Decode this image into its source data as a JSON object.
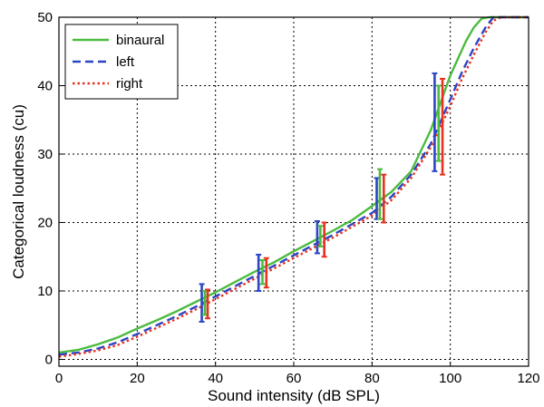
{
  "chart_data": {
    "type": "line",
    "title": "",
    "xlabel": "Sound intensity (dB SPL)",
    "ylabel": "Categorical loudness (cu)",
    "xlim": [
      0,
      120
    ],
    "ylim": [
      -1,
      50
    ],
    "x_ticks": [
      "0",
      "20",
      "40",
      "60",
      "80",
      "100",
      "120"
    ],
    "y_ticks": [
      "0",
      "10",
      "20",
      "30",
      "40",
      "50"
    ],
    "grid": true,
    "grid_style": "dotted",
    "legend_position": "top-left",
    "series": [
      {
        "name": "binaural",
        "color": "#4cbb3f",
        "style": "solid",
        "x": [
          0,
          5,
          10,
          15,
          20,
          25,
          30,
          35,
          40,
          45,
          50,
          55,
          60,
          65,
          70,
          75,
          80,
          85,
          90,
          95,
          100,
          102,
          104,
          106,
          108,
          110,
          112,
          115,
          120
        ],
        "y": [
          1.0,
          1.4,
          2.2,
          3.2,
          4.5,
          5.7,
          7.0,
          8.4,
          9.8,
          11.3,
          12.8,
          14.2,
          15.8,
          17.3,
          18.8,
          20.4,
          22.4,
          24.5,
          27.5,
          33.5,
          41.5,
          44.0,
          46.5,
          48.5,
          49.8,
          50,
          50,
          50,
          50
        ]
      },
      {
        "name": "left",
        "color": "#2b45c4",
        "style": "dashed",
        "x": [
          0,
          5,
          10,
          15,
          20,
          25,
          30,
          35,
          40,
          45,
          50,
          55,
          60,
          65,
          70,
          75,
          80,
          85,
          90,
          95,
          100,
          103,
          106,
          109,
          111,
          113,
          115,
          120
        ],
        "y": [
          0.7,
          1.0,
          1.6,
          2.5,
          3.7,
          5.0,
          6.3,
          7.7,
          9.2,
          10.7,
          12.2,
          13.7,
          15.2,
          16.7,
          18.2,
          19.8,
          21.4,
          23.8,
          27.0,
          31.5,
          38.0,
          42.0,
          45.5,
          48.5,
          50,
          50,
          50,
          50
        ]
      },
      {
        "name": "right",
        "color": "#e8311f",
        "style": "dotted",
        "x": [
          0,
          5,
          10,
          15,
          20,
          25,
          30,
          35,
          40,
          45,
          50,
          55,
          60,
          65,
          70,
          75,
          80,
          85,
          90,
          95,
          100,
          103,
          106,
          109,
          111,
          113,
          115,
          120
        ],
        "y": [
          0.4,
          0.8,
          1.3,
          2.1,
          3.3,
          4.6,
          5.9,
          7.3,
          8.8,
          10.3,
          11.8,
          13.3,
          14.8,
          16.3,
          17.8,
          19.4,
          21.0,
          23.3,
          26.5,
          31.0,
          37.0,
          41.0,
          44.5,
          47.8,
          49.5,
          50,
          50,
          50
        ]
      }
    ],
    "error_bars": [
      {
        "series": "left",
        "x": 36.5,
        "y": 8.5,
        "low": 5.5,
        "high": 11.0
      },
      {
        "series": "binaural",
        "x": 37.3,
        "y": 8.5,
        "low": 6.5,
        "high": 10.0
      },
      {
        "series": "right",
        "x": 38.0,
        "y": 8.3,
        "low": 6.0,
        "high": 10.2
      },
      {
        "series": "left",
        "x": 51.0,
        "y": 12.8,
        "low": 10.0,
        "high": 15.3
      },
      {
        "series": "binaural",
        "x": 52.0,
        "y": 13.0,
        "low": 11.0,
        "high": 14.5
      },
      {
        "series": "right",
        "x": 53.0,
        "y": 12.8,
        "low": 10.5,
        "high": 14.8
      },
      {
        "series": "left",
        "x": 66.0,
        "y": 17.8,
        "low": 15.5,
        "high": 20.2
      },
      {
        "series": "binaural",
        "x": 66.8,
        "y": 18.0,
        "low": 16.5,
        "high": 19.5
      },
      {
        "series": "right",
        "x": 67.8,
        "y": 17.8,
        "low": 15.0,
        "high": 20.0
      },
      {
        "series": "left",
        "x": 81.2,
        "y": 23.5,
        "low": 20.5,
        "high": 26.5
      },
      {
        "series": "binaural",
        "x": 82.0,
        "y": 24.0,
        "low": 20.5,
        "high": 27.8
      },
      {
        "series": "right",
        "x": 83.0,
        "y": 23.5,
        "low": 20.0,
        "high": 27.0
      },
      {
        "series": "left",
        "x": 96.0,
        "y": 34.5,
        "low": 27.5,
        "high": 41.8
      },
      {
        "series": "binaural",
        "x": 97.0,
        "y": 34.5,
        "low": 29.0,
        "high": 40.0
      },
      {
        "series": "right",
        "x": 98.0,
        "y": 34.0,
        "low": 27.0,
        "high": 41.0
      }
    ]
  }
}
